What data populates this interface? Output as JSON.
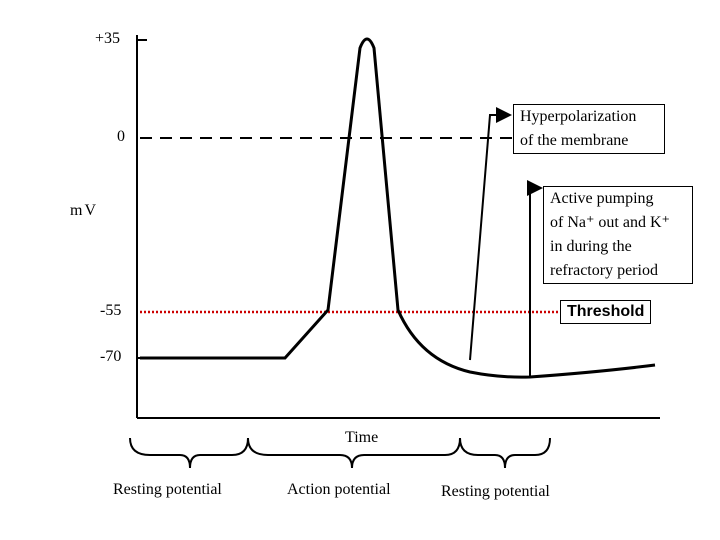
{
  "axis": {
    "y_ticks": [
      "+35",
      "0",
      "-55",
      "-70"
    ],
    "y_title": "mV",
    "x_title": "Time"
  },
  "annotations": {
    "hyperpolarization": [
      "Hyperpolarization",
      "of the membrane"
    ],
    "active_pumping": [
      "Active pumping",
      "of Na⁺ out and K⁺",
      "in during the",
      "refractory period"
    ],
    "threshold": "Threshold"
  },
  "phases": [
    "Resting potential",
    "Action potential",
    "Resting potential"
  ]
}
